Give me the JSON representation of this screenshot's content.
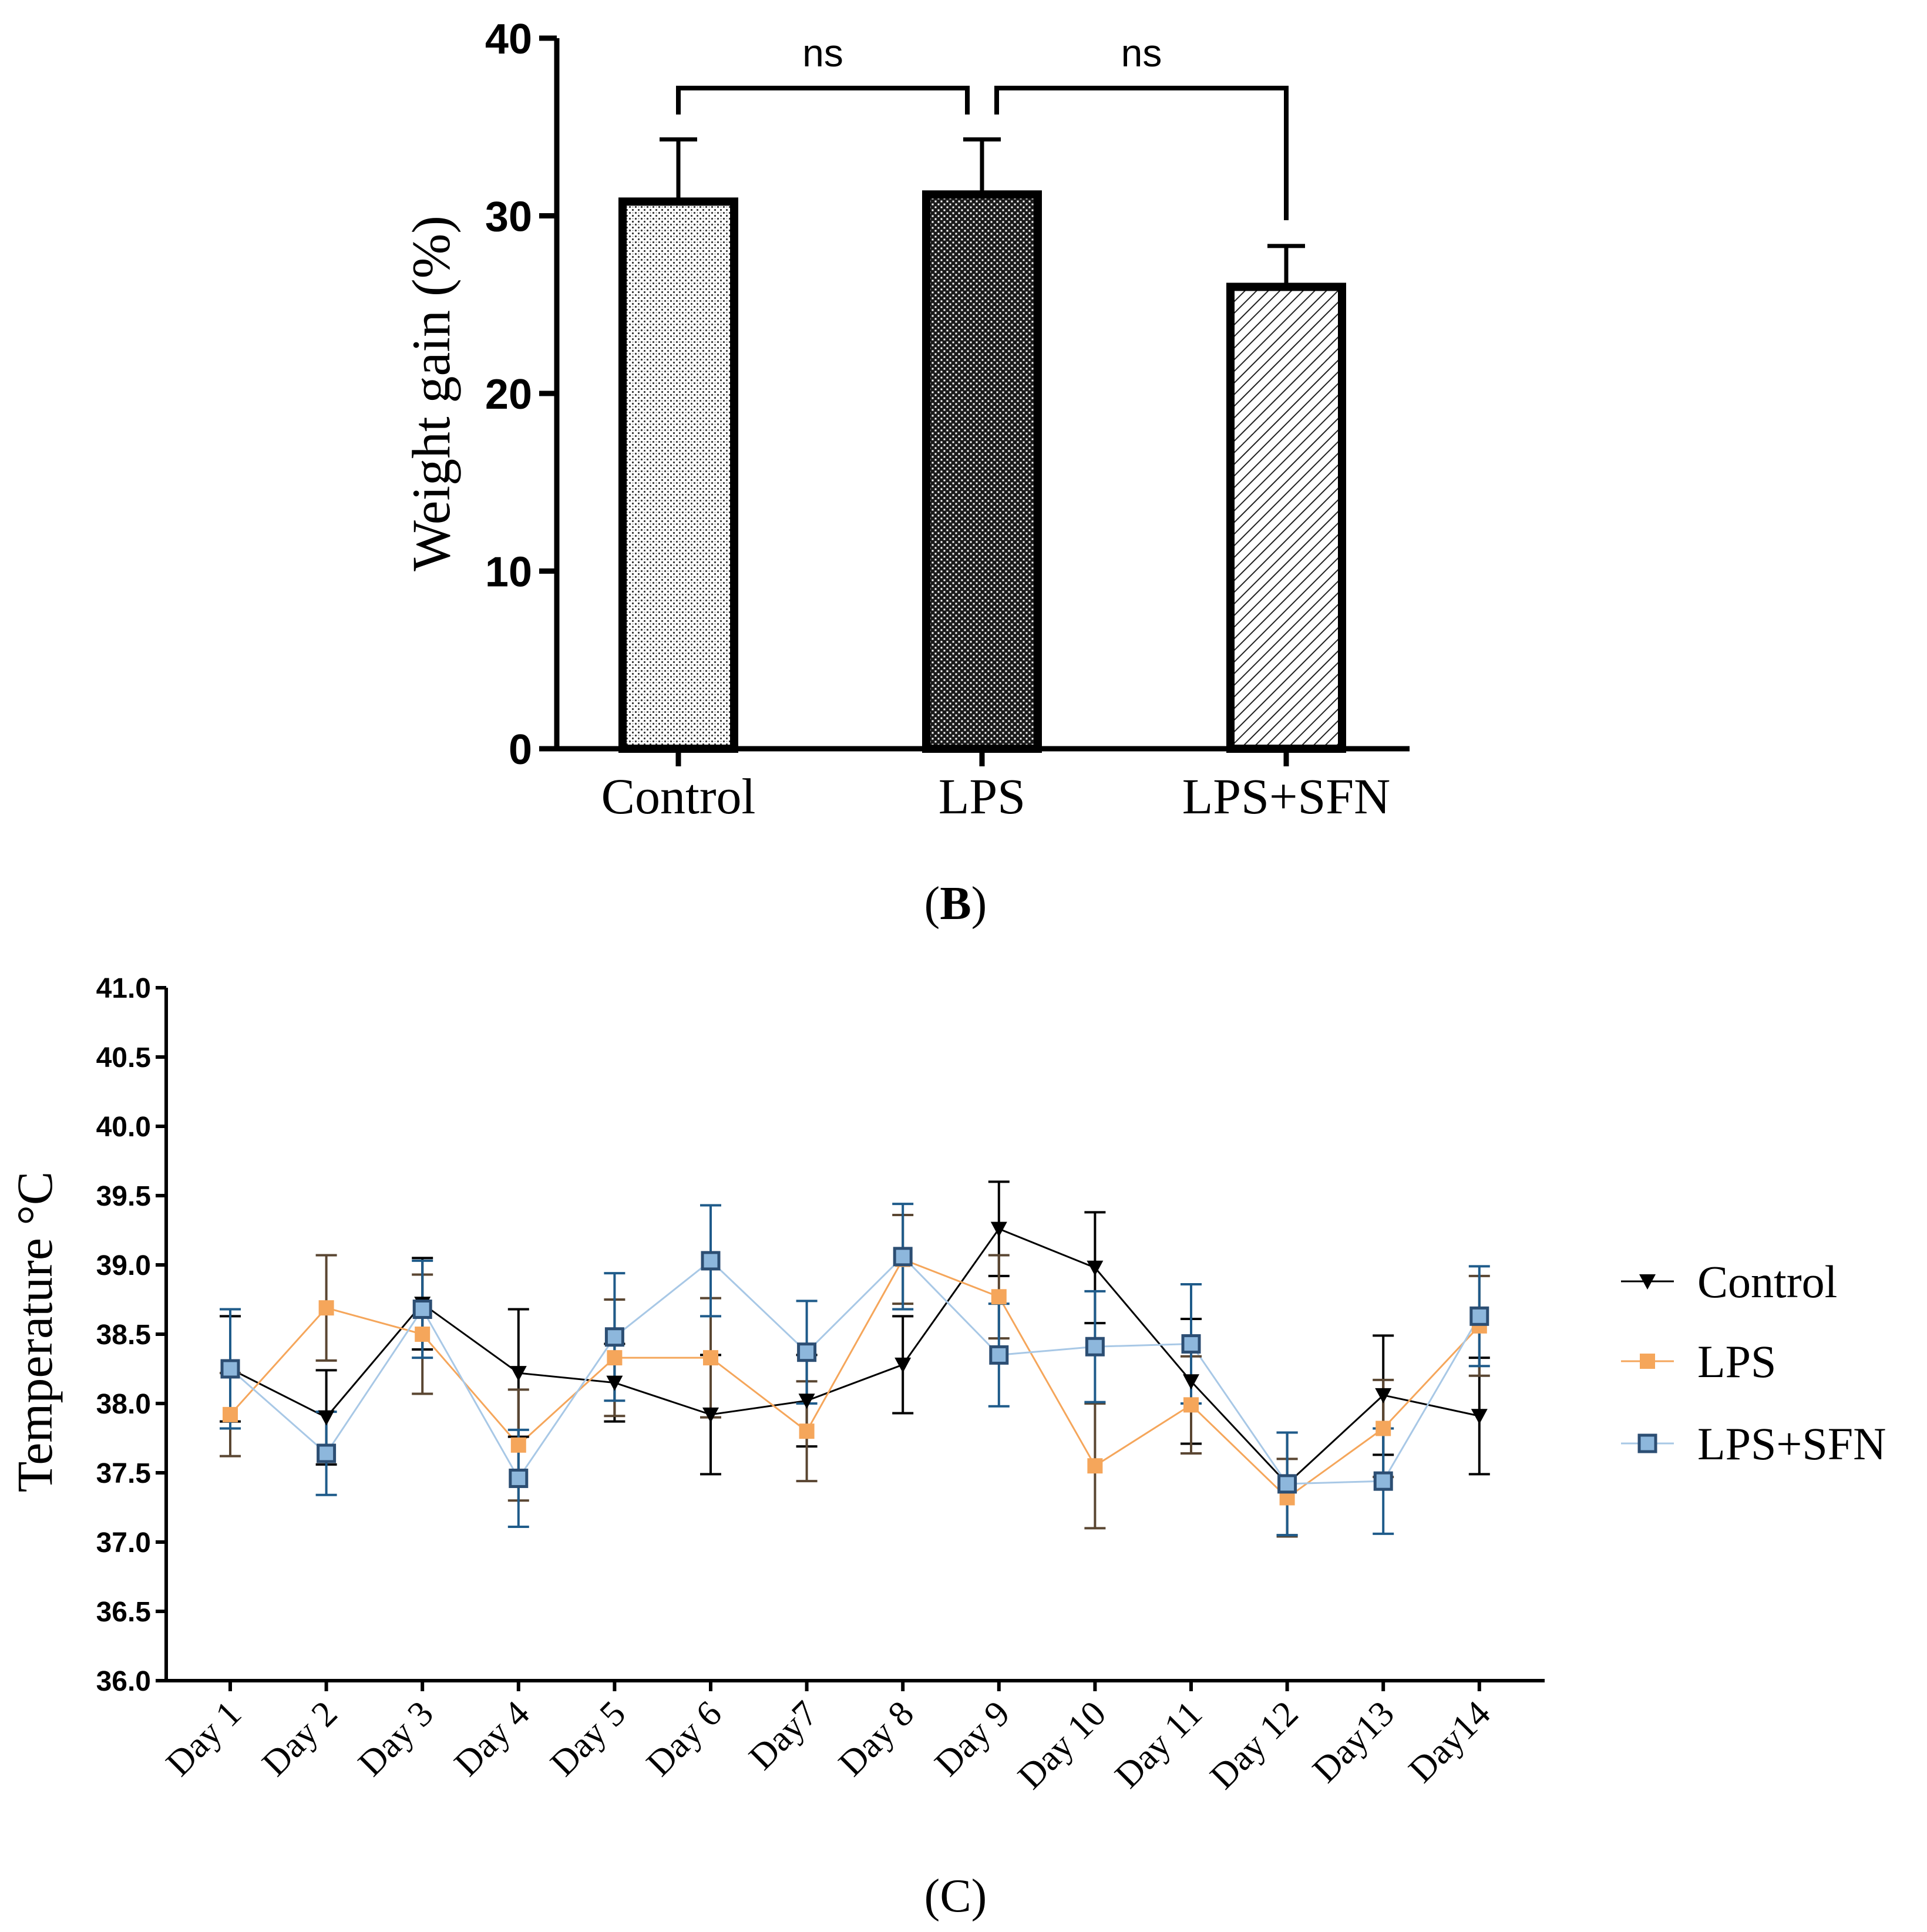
{
  "chart_data": [
    {
      "panel": "(B)",
      "panel_letter": "B",
      "type": "bar",
      "title": "",
      "xlabel": "",
      "ylabel": "Weight gain (%)",
      "ylim": [
        0,
        40
      ],
      "yticks": [
        "0",
        "10",
        "20",
        "30",
        "40"
      ],
      "categories": [
        "Control",
        "LPS",
        "LPS+SFN"
      ],
      "values": [
        30.8,
        31.2,
        26.0
      ],
      "errors": [
        3.5,
        3.1,
        2.3
      ],
      "patterns": [
        "dots",
        "grid",
        "diagonal"
      ],
      "significance": [
        {
          "from": 0,
          "to": 1,
          "label": "ns"
        },
        {
          "from": 1,
          "to": 2,
          "label": "ns"
        }
      ]
    },
    {
      "panel": "(C)",
      "panel_letter": "C",
      "type": "line",
      "title": "",
      "xlabel": "",
      "ylabel": "Temperature °C",
      "ylim": [
        36.0,
        41.0
      ],
      "yticks": [
        "36.0",
        "36.5",
        "37.0",
        "37.5",
        "38.0",
        "38.5",
        "39.0",
        "39.5",
        "40.0",
        "40.5",
        "41.0"
      ],
      "categories": [
        "Day 1",
        "Day 2",
        "Day 3",
        "Day 4",
        "Day 5",
        "Day 6",
        "Day7",
        "Day 8",
        "Day 9",
        "Day 10",
        "Day 11",
        "Day 12",
        "Day13",
        "Day14"
      ],
      "legend_position": "right",
      "series": [
        {
          "name": "Control",
          "marker": "triangle-down",
          "color": "#000000",
          "line_color": "#000000",
          "error_color": "#000000",
          "values": [
            38.25,
            37.9,
            38.72,
            38.22,
            38.15,
            37.92,
            38.02,
            38.28,
            39.26,
            38.98,
            38.16,
            37.42,
            38.06,
            37.91
          ],
          "errors": [
            0.38,
            0.34,
            0.33,
            0.46,
            0.28,
            0.43,
            0.33,
            0.35,
            0.34,
            0.4,
            0.45,
            0.37,
            0.43,
            0.42
          ]
        },
        {
          "name": "LPS",
          "marker": "square",
          "color": "#f5a65b",
          "line_color": "#f5a65b",
          "error_color": "#5a4632",
          "values": [
            37.92,
            38.69,
            38.5,
            37.7,
            38.33,
            38.33,
            37.8,
            39.04,
            38.77,
            37.55,
            37.99,
            37.32,
            37.82,
            38.56
          ],
          "errors": [
            0.3,
            0.38,
            0.43,
            0.4,
            0.42,
            0.43,
            0.36,
            0.32,
            0.3,
            0.45,
            0.35,
            0.28,
            0.35,
            0.36
          ]
        },
        {
          "name": "LPS+SFN",
          "marker": "square-outline",
          "color": "#8db7dc",
          "line_color": "#a8c8e6",
          "edge_color": "#2c4e73",
          "error_color": "#1f5b8a",
          "values": [
            38.25,
            37.64,
            38.68,
            37.46,
            38.48,
            39.03,
            38.37,
            39.06,
            38.35,
            38.41,
            38.43,
            37.42,
            37.44,
            38.63
          ],
          "errors": [
            0.43,
            0.3,
            0.35,
            0.35,
            0.46,
            0.4,
            0.37,
            0.38,
            0.37,
            0.4,
            0.43,
            0.37,
            0.38,
            0.36
          ]
        }
      ]
    }
  ]
}
